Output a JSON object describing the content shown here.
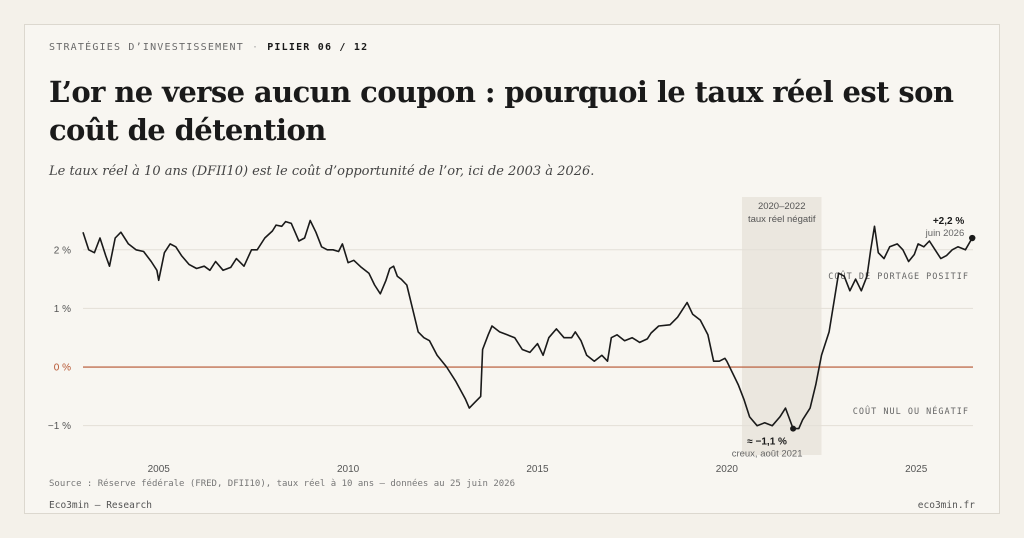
{
  "header": {
    "kicker": "STRATÉGIES D’INVESTISSEMENT",
    "separator": "·",
    "pillar": "PILIER 06 / 12",
    "title": "L’or ne verse aucun coupon : pourquoi le taux réel est son coût de détention",
    "subtitle": "Le taux réel à 10 ans (DFII10) est le coût d’opportunité de l’or, ici de 2003 à 2026."
  },
  "footer": {
    "source": "Source : Réserve fédérale (FRED, DFII10), taux réel à 10 ans — données au 25 juin 2026",
    "brand": "Eco3min — Research",
    "site": "eco3min.fr"
  },
  "colors": {
    "line": "#1a1a1a",
    "zero_line": "#b5532f",
    "zero_label": "#b5532f",
    "shade": "#ebe7df",
    "grid": "#e3dfd7"
  },
  "chart_data": {
    "type": "line",
    "unit": "%",
    "xlim": [
      2003.0,
      2026.5
    ],
    "ylim": [
      -1.5,
      2.9
    ],
    "y_ticks": [
      {
        "value": 2,
        "label": "2 %"
      },
      {
        "value": 1,
        "label": "1 %"
      },
      {
        "value": 0,
        "label": "0 %"
      },
      {
        "value": -1,
        "label": "−1 %"
      }
    ],
    "x_ticks": [
      {
        "value": 2005,
        "label": "2005"
      },
      {
        "value": 2010,
        "label": "2010"
      },
      {
        "value": 2015,
        "label": "2015"
      },
      {
        "value": 2020,
        "label": "2020"
      },
      {
        "value": 2025,
        "label": "2025"
      }
    ],
    "shaded_region": {
      "x_start": 2020.4,
      "x_end": 2022.5,
      "label_line1": "2020–2022",
      "label_line2": "taux réel négatif"
    },
    "zones": {
      "above": "COÛT DE PORTAGE POSITIF",
      "below": "COÛT NUL OU NÉGATIF"
    },
    "annotations": {
      "end": {
        "value_label": "+2,2 %",
        "date_label": "juin 2026"
      },
      "trough": {
        "value_label": "≈ −1,1 %",
        "date_label": "creux, août 2021"
      }
    },
    "series": [
      {
        "values": [
          [
            2003.0,
            2.3
          ],
          [
            2003.15,
            2.0
          ],
          [
            2003.3,
            1.95
          ],
          [
            2003.45,
            2.2
          ],
          [
            2003.6,
            1.9
          ],
          [
            2003.7,
            1.72
          ],
          [
            2003.85,
            2.2
          ],
          [
            2004.0,
            2.3
          ],
          [
            2004.2,
            2.1
          ],
          [
            2004.4,
            2.0
          ],
          [
            2004.6,
            1.97
          ],
          [
            2004.8,
            1.8
          ],
          [
            2004.95,
            1.65
          ],
          [
            2005.0,
            1.48
          ],
          [
            2005.15,
            1.95
          ],
          [
            2005.3,
            2.1
          ],
          [
            2005.45,
            2.05
          ],
          [
            2005.6,
            1.9
          ],
          [
            2005.8,
            1.75
          ],
          [
            2006.0,
            1.68
          ],
          [
            2006.2,
            1.72
          ],
          [
            2006.35,
            1.65
          ],
          [
            2006.5,
            1.8
          ],
          [
            2006.7,
            1.65
          ],
          [
            2006.9,
            1.7
          ],
          [
            2007.05,
            1.85
          ],
          [
            2007.25,
            1.72
          ],
          [
            2007.45,
            2.0
          ],
          [
            2007.6,
            2.0
          ],
          [
            2007.8,
            2.2
          ],
          [
            2008.0,
            2.32
          ],
          [
            2008.1,
            2.42
          ],
          [
            2008.25,
            2.4
          ],
          [
            2008.35,
            2.48
          ],
          [
            2008.5,
            2.45
          ],
          [
            2008.6,
            2.3
          ],
          [
            2008.7,
            2.15
          ],
          [
            2008.85,
            2.2
          ],
          [
            2009.0,
            2.5
          ],
          [
            2009.15,
            2.3
          ],
          [
            2009.3,
            2.05
          ],
          [
            2009.45,
            2.0
          ],
          [
            2009.6,
            2.0
          ],
          [
            2009.75,
            1.97
          ],
          [
            2009.85,
            2.1
          ],
          [
            2010.0,
            1.78
          ],
          [
            2010.15,
            1.82
          ],
          [
            2010.35,
            1.7
          ],
          [
            2010.55,
            1.6
          ],
          [
            2010.7,
            1.4
          ],
          [
            2010.85,
            1.25
          ],
          [
            2011.0,
            1.48
          ],
          [
            2011.1,
            1.68
          ],
          [
            2011.2,
            1.72
          ],
          [
            2011.3,
            1.55
          ],
          [
            2011.4,
            1.5
          ],
          [
            2011.55,
            1.4
          ],
          [
            2011.7,
            1.0
          ],
          [
            2011.85,
            0.6
          ],
          [
            2012.0,
            0.5
          ],
          [
            2012.15,
            0.45
          ],
          [
            2012.35,
            0.2
          ],
          [
            2012.6,
            0.0
          ],
          [
            2012.85,
            -0.25
          ],
          [
            2013.1,
            -0.55
          ],
          [
            2013.2,
            -0.7
          ],
          [
            2013.35,
            -0.6
          ],
          [
            2013.5,
            -0.5
          ],
          [
            2013.55,
            0.3
          ],
          [
            2013.7,
            0.55
          ],
          [
            2013.8,
            0.7
          ],
          [
            2014.0,
            0.6
          ],
          [
            2014.2,
            0.55
          ],
          [
            2014.4,
            0.5
          ],
          [
            2014.6,
            0.3
          ],
          [
            2014.8,
            0.25
          ],
          [
            2015.0,
            0.4
          ],
          [
            2015.15,
            0.2
          ],
          [
            2015.3,
            0.5
          ],
          [
            2015.5,
            0.65
          ],
          [
            2015.7,
            0.5
          ],
          [
            2015.9,
            0.5
          ],
          [
            2016.0,
            0.6
          ],
          [
            2016.15,
            0.45
          ],
          [
            2016.3,
            0.2
          ],
          [
            2016.5,
            0.1
          ],
          [
            2016.7,
            0.2
          ],
          [
            2016.85,
            0.1
          ],
          [
            2016.95,
            0.5
          ],
          [
            2017.1,
            0.55
          ],
          [
            2017.3,
            0.45
          ],
          [
            2017.5,
            0.5
          ],
          [
            2017.7,
            0.42
          ],
          [
            2017.9,
            0.48
          ],
          [
            2018.0,
            0.58
          ],
          [
            2018.2,
            0.7
          ],
          [
            2018.5,
            0.72
          ],
          [
            2018.7,
            0.85
          ],
          [
            2018.8,
            0.95
          ],
          [
            2018.95,
            1.1
          ],
          [
            2019.1,
            0.9
          ],
          [
            2019.3,
            0.8
          ],
          [
            2019.5,
            0.55
          ],
          [
            2019.65,
            0.1
          ],
          [
            2019.8,
            0.1
          ],
          [
            2019.95,
            0.15
          ],
          [
            2020.0,
            0.1
          ],
          [
            2020.15,
            -0.1
          ],
          [
            2020.3,
            -0.3
          ],
          [
            2020.45,
            -0.55
          ],
          [
            2020.6,
            -0.85
          ],
          [
            2020.8,
            -1.0
          ],
          [
            2021.0,
            -0.95
          ],
          [
            2021.2,
            -1.0
          ],
          [
            2021.4,
            -0.85
          ],
          [
            2021.55,
            -0.7
          ],
          [
            2021.75,
            -1.05
          ],
          [
            2021.9,
            -1.05
          ],
          [
            2022.0,
            -0.9
          ],
          [
            2022.2,
            -0.7
          ],
          [
            2022.35,
            -0.3
          ],
          [
            2022.5,
            0.2
          ],
          [
            2022.7,
            0.6
          ],
          [
            2022.85,
            1.2
          ],
          [
            2022.95,
            1.6
          ],
          [
            2023.1,
            1.55
          ],
          [
            2023.25,
            1.3
          ],
          [
            2023.4,
            1.5
          ],
          [
            2023.55,
            1.3
          ],
          [
            2023.7,
            1.55
          ],
          [
            2023.8,
            2.0
          ],
          [
            2023.9,
            2.4
          ],
          [
            2024.0,
            1.95
          ],
          [
            2024.15,
            1.85
          ],
          [
            2024.3,
            2.05
          ],
          [
            2024.5,
            2.1
          ],
          [
            2024.65,
            2.0
          ],
          [
            2024.8,
            1.8
          ],
          [
            2024.95,
            1.92
          ],
          [
            2025.05,
            2.1
          ],
          [
            2025.2,
            2.05
          ],
          [
            2025.35,
            2.15
          ],
          [
            2025.5,
            2.0
          ],
          [
            2025.65,
            1.85
          ],
          [
            2025.8,
            1.9
          ],
          [
            2025.95,
            2.0
          ],
          [
            2026.1,
            2.05
          ],
          [
            2026.3,
            2.0
          ],
          [
            2026.48,
            2.2
          ]
        ]
      }
    ]
  }
}
